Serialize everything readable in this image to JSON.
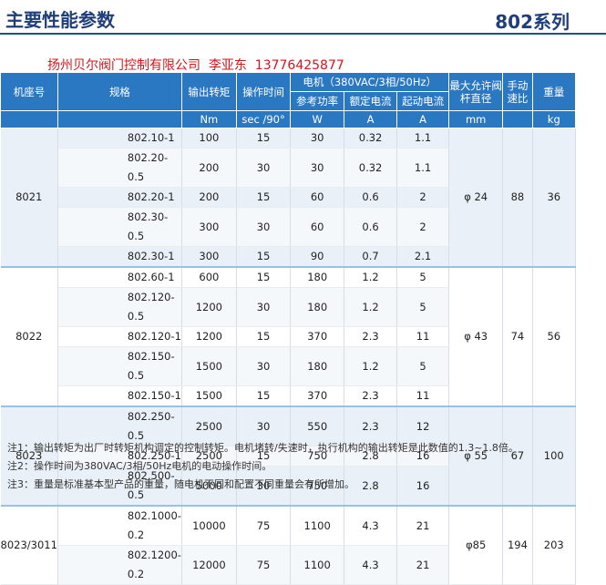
{
  "header": {
    "title": "主要性能参数",
    "series": "802系列",
    "company": "扬州贝尔阀门控制有限公司  李亚东  13776425877"
  },
  "table": {
    "headers": {
      "model": "机座号",
      "spec": "规格",
      "torque": "输出转矩",
      "time": "操作时间",
      "motor": "电机（380VAC/3相/50Hz）",
      "power": "参考功率",
      "rated": "额定电流",
      "start": "起动电流",
      "stem": "最大允许阀杆直径",
      "ratio": "手动速比",
      "weight": "重量"
    },
    "units": {
      "torque": "Nm",
      "time": "sec /90°",
      "power": "W",
      "rated": "A",
      "start": "A",
      "stem": "mm",
      "weight": "kg"
    },
    "groups": [
      {
        "model": "8021",
        "stem": "φ 24",
        "ratio": "88",
        "weight": "36",
        "rows": [
          {
            "spec": "802.10-1",
            "torque": "100",
            "time": "15",
            "power": "30",
            "rated": "0.32",
            "start": "1.1"
          },
          {
            "spec": "802.20-0.5",
            "torque": "200",
            "time": "30",
            "power": "30",
            "rated": "0.32",
            "start": "1.1"
          },
          {
            "spec": "802.20-1",
            "torque": "200",
            "time": "15",
            "power": "60",
            "rated": "0.6",
            "start": "2"
          },
          {
            "spec": "802.30-0.5",
            "torque": "300",
            "time": "30",
            "power": "60",
            "rated": "0.6",
            "start": "2"
          },
          {
            "spec": "802.30-1",
            "torque": "300",
            "time": "15",
            "power": "90",
            "rated": "0.7",
            "start": "2.1"
          }
        ]
      },
      {
        "model": "8022",
        "stem": "φ 43",
        "ratio": "74",
        "weight": "56",
        "rows": [
          {
            "spec": "802.60-1",
            "torque": "600",
            "time": "15",
            "power": "180",
            "rated": "1.2",
            "start": "5"
          },
          {
            "spec": "802.120-0.5",
            "torque": "1200",
            "time": "30",
            "power": "180",
            "rated": "1.2",
            "start": "5"
          },
          {
            "spec": "802.120-1",
            "torque": "1200",
            "time": "15",
            "power": "370",
            "rated": "2.3",
            "start": "11"
          },
          {
            "spec": "802.150-0.5",
            "torque": "1500",
            "time": "30",
            "power": "180",
            "rated": "1.2",
            "start": "5"
          },
          {
            "spec": "802.150-1",
            "torque": "1500",
            "time": "15",
            "power": "370",
            "rated": "2.3",
            "start": "11"
          }
        ]
      },
      {
        "model": "8023",
        "stem": "φ 55",
        "ratio": "67",
        "weight": "100",
        "rows": [
          {
            "spec": "802.250-0.5",
            "torque": "2500",
            "time": "30",
            "power": "550",
            "rated": "2.3",
            "start": "12"
          },
          {
            "spec": "802.250-1",
            "torque": "2500",
            "time": "15",
            "power": "750",
            "rated": "2.8",
            "start": "16"
          },
          {
            "spec": "802.500-0.5",
            "torque": "5000",
            "time": "30",
            "power": "750",
            "rated": "2.8",
            "start": "16"
          }
        ]
      },
      {
        "model": "8023/3011",
        "stem": "φ85",
        "ratio": "194",
        "weight": "203",
        "rows": [
          {
            "spec": "802.1000-0.2",
            "torque": "10000",
            "time": "75",
            "power": "1100",
            "rated": "4.3",
            "start": "21"
          },
          {
            "spec": "802.1200-0.2",
            "torque": "12000",
            "time": "75",
            "power": "1100",
            "rated": "4.3",
            "start": "21"
          }
        ]
      }
    ]
  },
  "notes": [
    "注1：输出转矩为出厂时转矩机构调定的控制转矩。电机堵转/失速时，执行机构的输出转矩是此数值的1.3~1.8倍。",
    "注2：操作时间为380VAC/3相/50Hz电机的电动操作时间。",
    "注3：重量是标准基本型产品的重量，随电机不同和配置不同重量会有所增加。"
  ]
}
